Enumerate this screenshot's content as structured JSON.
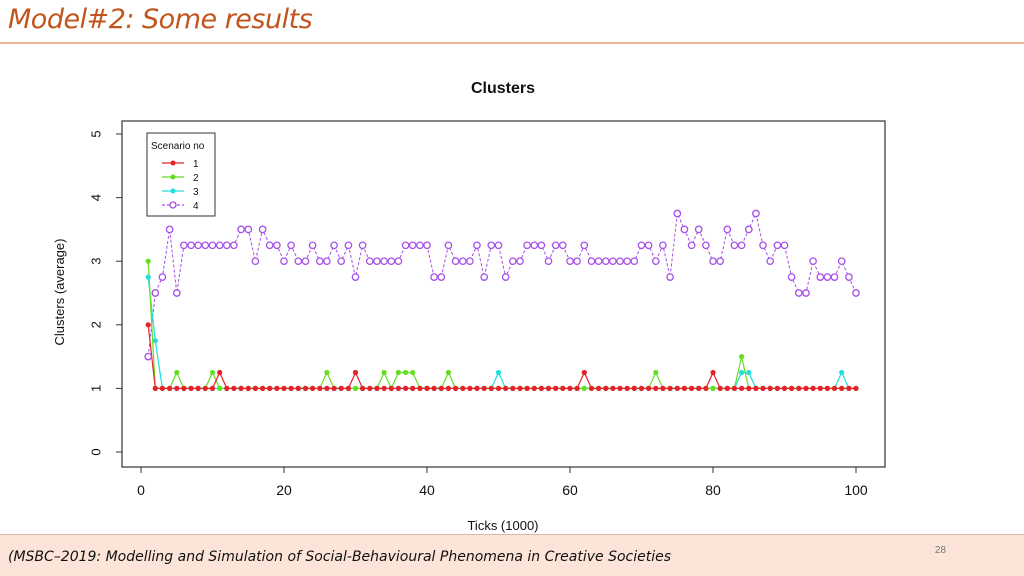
{
  "slide": {
    "title": "Model#2: Some results",
    "footer": "(MSBC–2019: Modelling and Simulation of Social-Behavioural Phenomena in Creative Societies",
    "page_number": "28"
  },
  "colors": {
    "title": "#c0561e",
    "rule": "#f0b590",
    "footer_bg": "#fce5d8"
  },
  "chart_data": {
    "type": "line",
    "title": "Clusters",
    "xlabel": "Ticks (1000)",
    "ylabel": "Clusters (average)",
    "xlim": [
      0,
      100
    ],
    "ylim": [
      0,
      5
    ],
    "x_ticks": [
      "0",
      "20",
      "40",
      "60",
      "80",
      "100"
    ],
    "y_ticks": [
      "0",
      "1",
      "2",
      "3",
      "4",
      "5"
    ],
    "grid": false,
    "legend": {
      "title": "Scenario no",
      "position": "top-left"
    },
    "series": [
      {
        "name": "1",
        "color": "#e8202a",
        "marker": "filled-circle",
        "x": [
          1,
          2,
          11,
          30,
          62,
          80,
          84
        ],
        "y": [
          2,
          1,
          1.25,
          1.25,
          1.25,
          1.25,
          1
        ],
        "baseline": 1,
        "baseline_from": 2,
        "baseline_to": 100
      },
      {
        "name": "2",
        "color": "#66dd22",
        "marker": "filled-circle",
        "x": [
          1,
          2,
          5,
          10,
          26,
          34,
          36,
          37,
          38,
          43,
          50,
          72,
          83,
          84
        ],
        "y": [
          3,
          1,
          1.25,
          1.25,
          1.25,
          1.25,
          1.25,
          1.25,
          1.25,
          1.25,
          1,
          1.25,
          1,
          1.5
        ],
        "baseline": 1,
        "baseline_from": 2,
        "baseline_to": 100
      },
      {
        "name": "3",
        "color": "#22dddd",
        "marker": "filled-circle",
        "x": [
          1,
          2,
          3,
          50,
          84,
          85,
          98
        ],
        "y": [
          2.75,
          1.75,
          1,
          1.25,
          1.25,
          1.25,
          1.25
        ],
        "baseline": 1,
        "baseline_from": 3,
        "baseline_to": 100
      },
      {
        "name": "4",
        "color": "#a64ee8",
        "marker": "open-circle",
        "x": [
          1,
          2,
          3,
          4,
          5,
          6,
          7,
          8,
          9,
          10,
          11,
          12,
          13,
          14,
          15,
          16,
          17,
          18,
          19,
          20,
          21,
          22,
          23,
          24,
          25,
          26,
          27,
          28,
          29,
          30,
          31,
          32,
          33,
          34,
          35,
          36,
          37,
          38,
          39,
          40,
          41,
          42,
          43,
          44,
          45,
          46,
          47,
          48,
          49,
          50,
          51,
          52,
          53,
          54,
          55,
          56,
          57,
          58,
          59,
          60,
          61,
          62,
          63,
          64,
          65,
          66,
          67,
          68,
          69,
          70,
          71,
          72,
          73,
          74,
          75,
          76,
          77,
          78,
          79,
          80,
          81,
          82,
          83,
          84,
          85,
          86,
          87,
          88,
          89,
          90,
          91,
          92,
          93,
          94,
          95,
          96,
          97,
          98,
          99,
          100
        ],
        "y": [
          1.5,
          2.5,
          2.75,
          3.5,
          2.5,
          3.25,
          3.25,
          3.25,
          3.25,
          3.25,
          3.25,
          3.25,
          3.25,
          3.5,
          3.5,
          3,
          3.5,
          3.25,
          3.25,
          3,
          3.25,
          3,
          3,
          3.25,
          3,
          3,
          3.25,
          3,
          3.25,
          2.75,
          3.25,
          3,
          3,
          3,
          3,
          3,
          3.25,
          3.25,
          3.25,
          3.25,
          2.75,
          2.75,
          3.25,
          3,
          3,
          3,
          3.25,
          2.75,
          3.25,
          3.25,
          2.75,
          3,
          3,
          3.25,
          3.25,
          3.25,
          3,
          3.25,
          3.25,
          3,
          3,
          3.25,
          3,
          3,
          3,
          3,
          3,
          3,
          3,
          3.25,
          3.25,
          3,
          3.25,
          2.75,
          3.75,
          3.5,
          3.25,
          3.5,
          3.25,
          3,
          3,
          3.5,
          3.25,
          3.25,
          3.5,
          3.75,
          3.25,
          3,
          3.25,
          3.25,
          2.75,
          2.5,
          2.5,
          3,
          2.75,
          2.75,
          2.75,
          3,
          2.75,
          2.5
        ]
      }
    ]
  }
}
